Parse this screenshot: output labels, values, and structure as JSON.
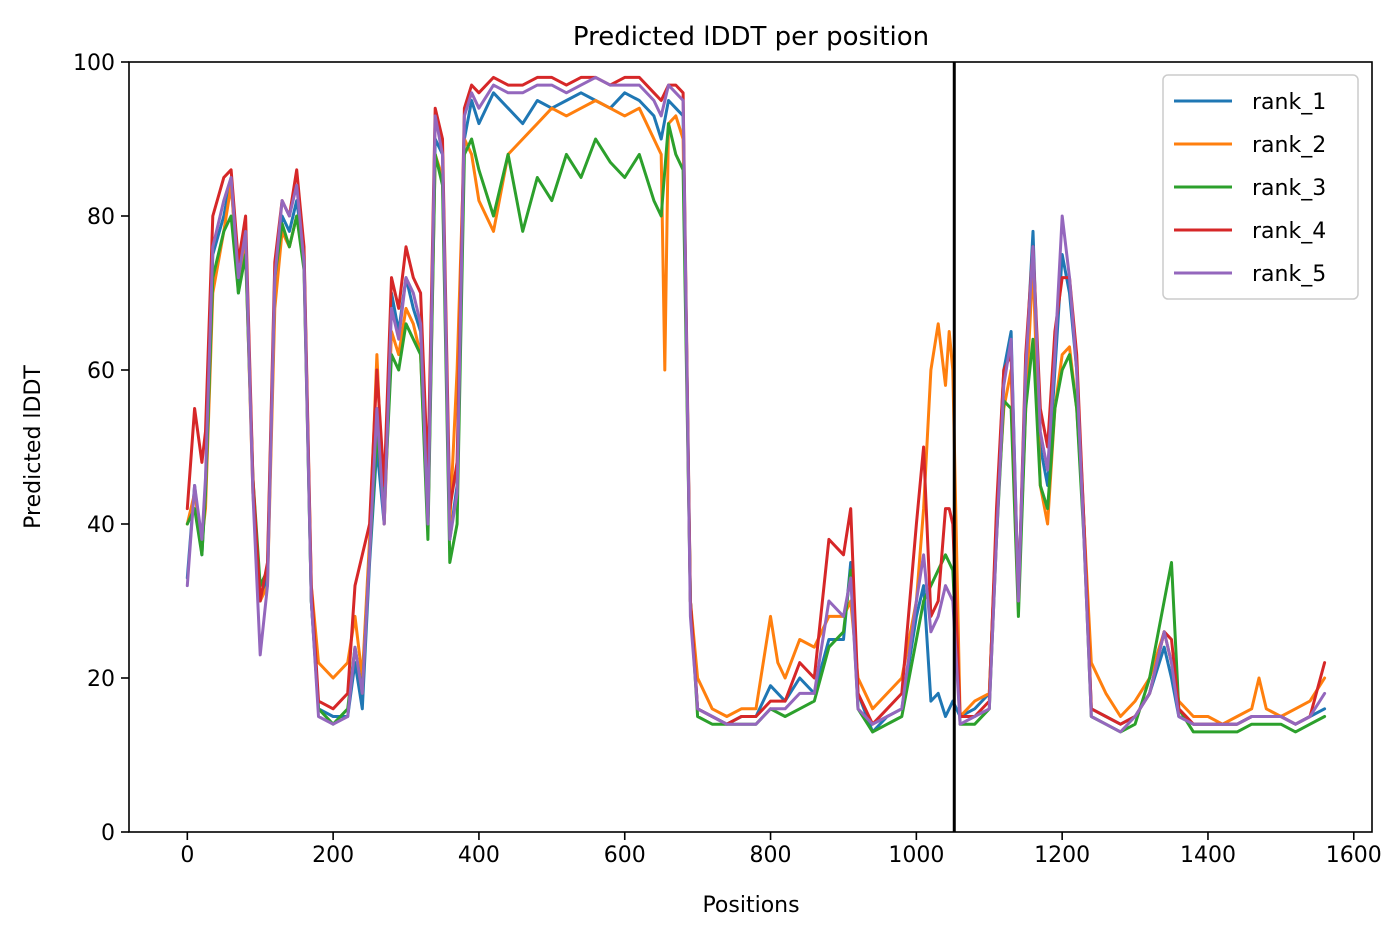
{
  "chart_data": {
    "type": "line",
    "title": "Predicted lDDT per position",
    "xlabel": "Positions",
    "ylabel": "Predicted lDDT",
    "xlim": [
      -80,
      1625
    ],
    "ylim": [
      0,
      100
    ],
    "xticks": [
      0,
      200,
      400,
      600,
      800,
      1000,
      1200,
      1400,
      1600
    ],
    "yticks": [
      0,
      20,
      40,
      60,
      80,
      100
    ],
    "grid": false,
    "legend": "top-right",
    "chain_break_x": 1052,
    "series": [
      {
        "name": "rank_1",
        "color": "#1f77b4",
        "x": [
          0,
          10,
          20,
          25,
          35,
          50,
          60,
          70,
          80,
          90,
          100,
          110,
          120,
          130,
          140,
          150,
          160,
          170,
          180,
          200,
          220,
          230,
          240,
          250,
          260,
          270,
          280,
          290,
          300,
          310,
          320,
          330,
          340,
          350,
          360,
          370,
          380,
          390,
          400,
          420,
          440,
          460,
          480,
          500,
          520,
          540,
          560,
          580,
          600,
          620,
          640,
          650,
          660,
          670,
          680,
          690,
          700,
          720,
          740,
          760,
          780,
          800,
          820,
          840,
          860,
          880,
          900,
          910,
          920,
          940,
          960,
          980,
          1000,
          1010,
          1020,
          1030,
          1040,
          1045,
          1050,
          1060,
          1080,
          1100,
          1110,
          1120,
          1130,
          1140,
          1150,
          1160,
          1170,
          1180,
          1190,
          1200,
          1210,
          1220,
          1230,
          1240,
          1260,
          1280,
          1300,
          1320,
          1340,
          1350,
          1360,
          1380,
          1400,
          1420,
          1440,
          1460,
          1480,
          1500,
          1520,
          1540,
          1560
        ],
        "values": [
          33,
          45,
          36,
          45,
          75,
          80,
          85,
          70,
          78,
          45,
          30,
          33,
          70,
          80,
          78,
          82,
          75,
          30,
          16,
          15,
          15,
          22,
          16,
          35,
          50,
          40,
          70,
          65,
          72,
          68,
          65,
          40,
          90,
          88,
          38,
          45,
          90,
          95,
          92,
          96,
          94,
          92,
          95,
          94,
          95,
          96,
          95,
          94,
          96,
          95,
          93,
          90,
          95,
          94,
          93,
          30,
          16,
          15,
          14,
          15,
          15,
          19,
          17,
          20,
          18,
          25,
          25,
          35,
          18,
          13,
          15,
          16,
          28,
          32,
          17,
          18,
          15,
          16,
          17,
          15,
          16,
          18,
          40,
          60,
          65,
          30,
          60,
          78,
          50,
          45,
          60,
          75,
          70,
          60,
          40,
          16,
          15,
          14,
          15,
          18,
          24,
          20,
          15,
          14,
          14,
          14,
          14,
          15,
          15,
          15,
          14,
          15,
          16
        ]
      },
      {
        "name": "rank_2",
        "color": "#ff7f0e",
        "x": [
          0,
          10,
          20,
          25,
          35,
          50,
          60,
          70,
          80,
          90,
          100,
          110,
          120,
          130,
          140,
          150,
          160,
          170,
          180,
          200,
          220,
          230,
          240,
          250,
          260,
          270,
          280,
          290,
          300,
          310,
          320,
          330,
          340,
          350,
          360,
          370,
          380,
          390,
          400,
          420,
          440,
          460,
          480,
          500,
          520,
          540,
          560,
          580,
          600,
          620,
          640,
          650,
          655,
          660,
          670,
          680,
          690,
          700,
          720,
          740,
          760,
          780,
          800,
          810,
          820,
          840,
          860,
          880,
          900,
          910,
          920,
          940,
          960,
          980,
          1000,
          1010,
          1020,
          1030,
          1040,
          1045,
          1050,
          1060,
          1080,
          1100,
          1110,
          1120,
          1130,
          1140,
          1150,
          1160,
          1170,
          1180,
          1190,
          1200,
          1210,
          1220,
          1230,
          1240,
          1260,
          1280,
          1300,
          1320,
          1340,
          1350,
          1360,
          1380,
          1400,
          1420,
          1440,
          1460,
          1470,
          1480,
          1500,
          1520,
          1540,
          1560
        ],
        "values": [
          40,
          44,
          38,
          42,
          70,
          78,
          84,
          72,
          76,
          44,
          30,
          32,
          68,
          78,
          76,
          80,
          74,
          32,
          22,
          20,
          22,
          28,
          20,
          38,
          62,
          40,
          65,
          62,
          68,
          66,
          62,
          40,
          88,
          85,
          40,
          60,
          90,
          88,
          82,
          78,
          88,
          90,
          92,
          94,
          93,
          94,
          95,
          94,
          93,
          94,
          90,
          88,
          60,
          92,
          93,
          90,
          30,
          20,
          16,
          15,
          16,
          16,
          28,
          22,
          20,
          25,
          24,
          28,
          28,
          30,
          20,
          16,
          18,
          20,
          30,
          42,
          60,
          66,
          58,
          65,
          60,
          15,
          17,
          18,
          40,
          55,
          60,
          30,
          55,
          74,
          45,
          40,
          55,
          62,
          63,
          55,
          40,
          22,
          18,
          15,
          17,
          20,
          26,
          22,
          17,
          15,
          15,
          14,
          15,
          16,
          20,
          16,
          15,
          16,
          17,
          20
        ]
      },
      {
        "name": "rank_3",
        "color": "#2ca02c",
        "x": [
          0,
          10,
          20,
          25,
          35,
          50,
          60,
          70,
          80,
          90,
          100,
          110,
          120,
          130,
          140,
          150,
          160,
          170,
          180,
          200,
          220,
          230,
          240,
          250,
          260,
          270,
          280,
          290,
          300,
          310,
          320,
          330,
          340,
          350,
          360,
          370,
          380,
          390,
          400,
          420,
          440,
          460,
          480,
          500,
          520,
          540,
          560,
          580,
          600,
          620,
          640,
          650,
          660,
          670,
          680,
          690,
          700,
          720,
          740,
          760,
          780,
          800,
          820,
          840,
          860,
          880,
          900,
          910,
          920,
          940,
          960,
          980,
          1000,
          1010,
          1020,
          1030,
          1040,
          1045,
          1050,
          1060,
          1080,
          1100,
          1110,
          1120,
          1130,
          1140,
          1150,
          1160,
          1170,
          1180,
          1190,
          1200,
          1210,
          1220,
          1230,
          1240,
          1260,
          1280,
          1300,
          1320,
          1340,
          1350,
          1360,
          1380,
          1400,
          1420,
          1440,
          1460,
          1480,
          1500,
          1520,
          1540,
          1560
        ],
        "values": [
          40,
          42,
          36,
          44,
          72,
          78,
          80,
          70,
          75,
          46,
          32,
          34,
          72,
          79,
          76,
          80,
          73,
          30,
          16,
          14,
          16,
          24,
          18,
          36,
          52,
          42,
          62,
          60,
          66,
          64,
          62,
          38,
          88,
          84,
          35,
          40,
          88,
          90,
          86,
          80,
          88,
          78,
          85,
          82,
          88,
          85,
          90,
          87,
          85,
          88,
          82,
          80,
          92,
          88,
          86,
          30,
          15,
          14,
          14,
          14,
          14,
          16,
          15,
          16,
          17,
          24,
          26,
          34,
          16,
          13,
          14,
          15,
          25,
          30,
          32,
          34,
          36,
          35,
          34,
          14,
          14,
          16,
          38,
          56,
          55,
          28,
          55,
          64,
          45,
          42,
          55,
          60,
          62,
          55,
          38,
          15,
          14,
          13,
          14,
          20,
          30,
          35,
          16,
          13,
          13,
          13,
          13,
          14,
          14,
          14,
          13,
          14,
          15
        ]
      },
      {
        "name": "rank_4",
        "color": "#d62728",
        "x": [
          0,
          10,
          20,
          25,
          35,
          50,
          60,
          70,
          80,
          90,
          100,
          110,
          120,
          130,
          140,
          150,
          160,
          170,
          180,
          200,
          220,
          230,
          240,
          250,
          260,
          270,
          280,
          290,
          300,
          310,
          320,
          330,
          340,
          350,
          360,
          370,
          380,
          390,
          400,
          420,
          440,
          460,
          480,
          500,
          520,
          540,
          560,
          580,
          600,
          620,
          640,
          650,
          660,
          670,
          680,
          690,
          700,
          720,
          740,
          760,
          780,
          800,
          820,
          840,
          860,
          880,
          900,
          910,
          920,
          940,
          960,
          980,
          1000,
          1010,
          1020,
          1030,
          1040,
          1045,
          1050,
          1060,
          1080,
          1100,
          1110,
          1120,
          1130,
          1140,
          1150,
          1160,
          1170,
          1180,
          1190,
          1200,
          1210,
          1220,
          1230,
          1240,
          1260,
          1280,
          1300,
          1320,
          1340,
          1350,
          1360,
          1380,
          1400,
          1420,
          1440,
          1460,
          1480,
          1500,
          1520,
          1540,
          1560
        ],
        "values": [
          42,
          55,
          48,
          52,
          80,
          85,
          86,
          74,
          80,
          46,
          30,
          35,
          74,
          82,
          80,
          86,
          76,
          32,
          17,
          16,
          18,
          32,
          36,
          40,
          60,
          45,
          72,
          68,
          76,
          72,
          70,
          46,
          94,
          90,
          42,
          48,
          94,
          97,
          96,
          98,
          97,
          97,
          98,
          98,
          97,
          98,
          98,
          97,
          98,
          98,
          96,
          95,
          97,
          97,
          96,
          30,
          16,
          15,
          14,
          15,
          15,
          17,
          17,
          22,
          20,
          38,
          36,
          42,
          18,
          14,
          16,
          18,
          40,
          50,
          28,
          30,
          42,
          42,
          40,
          15,
          15,
          17,
          42,
          60,
          62,
          30,
          62,
          76,
          55,
          50,
          65,
          72,
          72,
          62,
          40,
          16,
          15,
          14,
          15,
          18,
          26,
          25,
          16,
          14,
          14,
          14,
          14,
          15,
          15,
          15,
          14,
          15,
          22
        ]
      },
      {
        "name": "rank_5",
        "color": "#9467bd",
        "x": [
          0,
          10,
          20,
          25,
          35,
          50,
          60,
          70,
          80,
          90,
          100,
          110,
          120,
          130,
          140,
          150,
          160,
          170,
          180,
          200,
          220,
          230,
          240,
          250,
          260,
          270,
          280,
          290,
          300,
          310,
          320,
          330,
          340,
          350,
          360,
          370,
          380,
          390,
          400,
          420,
          440,
          460,
          480,
          500,
          520,
          540,
          560,
          580,
          600,
          620,
          640,
          650,
          660,
          670,
          680,
          690,
          700,
          720,
          740,
          760,
          780,
          800,
          820,
          840,
          860,
          880,
          900,
          910,
          920,
          940,
          960,
          980,
          1000,
          1010,
          1020,
          1030,
          1040,
          1045,
          1050,
          1060,
          1080,
          1100,
          1110,
          1120,
          1130,
          1140,
          1150,
          1160,
          1170,
          1180,
          1190,
          1200,
          1210,
          1220,
          1230,
          1240,
          1260,
          1280,
          1300,
          1320,
          1340,
          1350,
          1360,
          1380,
          1400,
          1420,
          1440,
          1460,
          1480,
          1500,
          1520,
          1540,
          1560
        ],
        "values": [
          32,
          45,
          38,
          46,
          76,
          82,
          85,
          72,
          78,
          44,
          23,
          32,
          72,
          82,
          80,
          84,
          74,
          30,
          15,
          14,
          15,
          24,
          18,
          36,
          55,
          40,
          68,
          64,
          72,
          70,
          66,
          40,
          93,
          88,
          38,
          44,
          93,
          96,
          94,
          97,
          96,
          96,
          97,
          97,
          96,
          97,
          98,
          97,
          97,
          97,
          95,
          93,
          97,
          96,
          95,
          28,
          16,
          15,
          14,
          14,
          14,
          16,
          16,
          18,
          18,
          30,
          28,
          33,
          16,
          14,
          15,
          16,
          30,
          36,
          26,
          28,
          32,
          31,
          30,
          14,
          15,
          16,
          38,
          58,
          64,
          30,
          60,
          76,
          52,
          47,
          62,
          80,
          72,
          60,
          38,
          15,
          14,
          13,
          15,
          18,
          26,
          22,
          15,
          14,
          14,
          14,
          14,
          15,
          15,
          15,
          14,
          15,
          18
        ]
      }
    ]
  }
}
